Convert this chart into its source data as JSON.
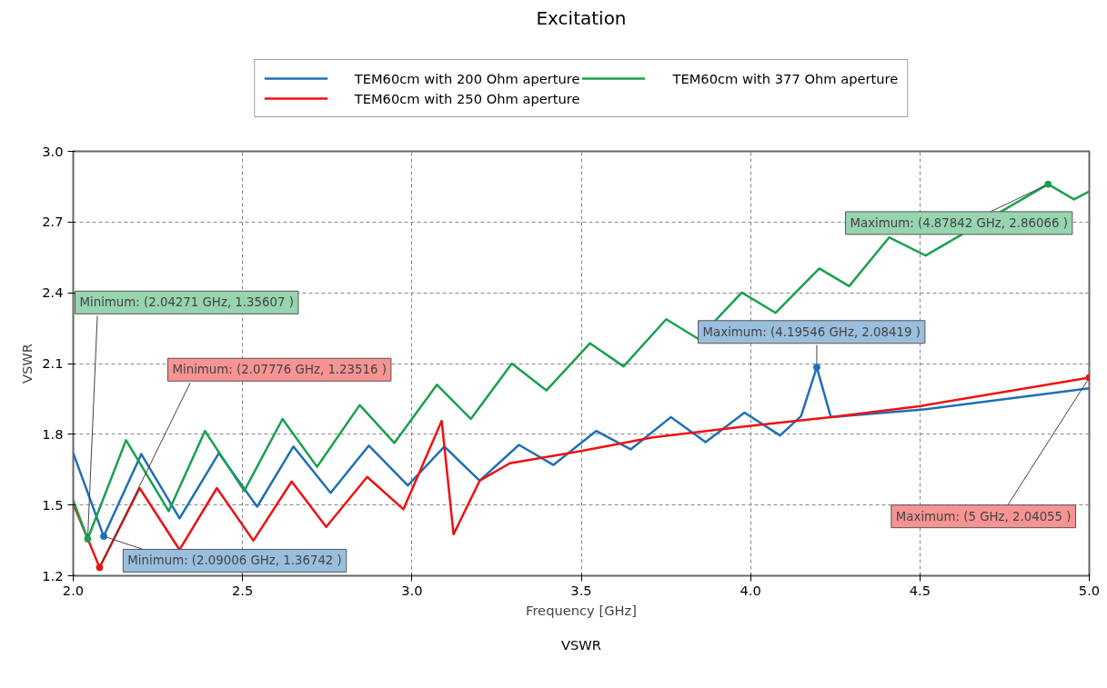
{
  "chart_data": {
    "type": "line",
    "title": "Excitation",
    "xlabel": "Frequency [GHz]",
    "ylabel": "VSWR",
    "xlim": [
      2.0,
      5.0
    ],
    "ylim": [
      1.2,
      3.0
    ],
    "xticks": [
      {
        "value": 2.0,
        "label": "2.0"
      },
      {
        "value": 2.5,
        "label": "2.5"
      },
      {
        "value": 3.0,
        "label": "3.0"
      },
      {
        "value": 3.5,
        "label": "3.5"
      },
      {
        "value": 4.0,
        "label": "4.0"
      },
      {
        "value": 4.5,
        "label": "4.5"
      },
      {
        "value": 5.0,
        "label": "5.0"
      }
    ],
    "yticks": [
      {
        "value": 1.2,
        "label": "1.2"
      },
      {
        "value": 1.5,
        "label": "1.5"
      },
      {
        "value": 1.8,
        "label": "1.8"
      },
      {
        "value": 2.1,
        "label": "2.1"
      },
      {
        "value": 2.4,
        "label": "2.4"
      },
      {
        "value": 2.7,
        "label": "2.7"
      },
      {
        "value": 3.0,
        "label": "3.0"
      }
    ],
    "grid": true,
    "legend": "top",
    "line_style": "solid",
    "marker": "none",
    "series": [
      {
        "name": "TEM60cm with 200 Ohm aperture",
        "color": "#1f6fb4",
        "x": [
          2.0,
          2.09006,
          2.201,
          2.314,
          2.43,
          2.543,
          2.65,
          2.76,
          2.873,
          2.988,
          3.096,
          3.2,
          3.316,
          3.418,
          3.544,
          3.646,
          3.765,
          3.867,
          3.982,
          4.087,
          4.149,
          4.19546,
          4.237,
          4.503,
          5.0
        ],
        "values": [
          1.72,
          1.36742,
          1.716,
          1.443,
          1.72,
          1.493,
          1.748,
          1.552,
          1.752,
          1.583,
          1.748,
          1.603,
          1.755,
          1.67,
          1.814,
          1.736,
          1.873,
          1.767,
          1.892,
          1.795,
          1.877,
          2.08419,
          1.873,
          1.904,
          1.995
        ]
      },
      {
        "name": "TEM60cm with 250 Ohm aperture",
        "color": "#ee1111",
        "x": [
          2.0,
          2.07776,
          2.196,
          2.314,
          2.424,
          2.532,
          2.645,
          2.747,
          2.868,
          2.975,
          3.088,
          3.123,
          3.2,
          3.289,
          3.496,
          3.711,
          3.988,
          4.237,
          4.503,
          5.0
        ],
        "values": [
          1.505,
          1.23516,
          1.572,
          1.31,
          1.572,
          1.349,
          1.6,
          1.407,
          1.619,
          1.482,
          1.857,
          1.376,
          1.603,
          1.677,
          1.728,
          1.787,
          1.834,
          1.873,
          1.92,
          2.04055
        ]
      },
      {
        "name": "TEM60cm with 377 Ohm aperture",
        "color": "#1aa050",
        "x": [
          2.0,
          2.04271,
          2.156,
          2.282,
          2.389,
          2.505,
          2.618,
          2.72,
          2.846,
          2.948,
          3.074,
          3.174,
          3.295,
          3.397,
          3.526,
          3.625,
          3.751,
          3.845,
          3.974,
          4.074,
          4.203,
          4.291,
          4.409,
          4.517,
          4.87842,
          4.955,
          5.0
        ],
        "values": [
          1.52,
          1.35607,
          1.775,
          1.474,
          1.814,
          1.56,
          1.865,
          1.662,
          1.924,
          1.763,
          2.01,
          1.865,
          2.1,
          1.986,
          2.186,
          2.088,
          2.288,
          2.205,
          2.401,
          2.315,
          2.503,
          2.428,
          2.635,
          2.558,
          2.86066,
          2.796,
          2.83
        ]
      }
    ],
    "annotations": [
      {
        "text": "Minimum: (2.04271 GHz, 1.35607 )",
        "x": 2.04271,
        "y": 1.35607
      },
      {
        "text": "Minimum: (2.07776 GHz, 1.23516 )",
        "x": 2.07776,
        "y": 1.23516
      },
      {
        "text": "Minimum: (2.09006 GHz, 1.36742 )",
        "x": 2.09006,
        "y": 1.36742
      },
      {
        "text": "Maximum: (4.19546 GHz, 2.08419 )",
        "x": 4.19546,
        "y": 2.08419
      },
      {
        "text": "Maximum: (4.87842 GHz, 2.86066 )",
        "x": 4.87842,
        "y": 2.86066
      },
      {
        "text": "Maximum: (5 GHz, 2.04055 )",
        "x": 5.0,
        "y": 2.04055
      },
      "VSWR"
    ]
  }
}
